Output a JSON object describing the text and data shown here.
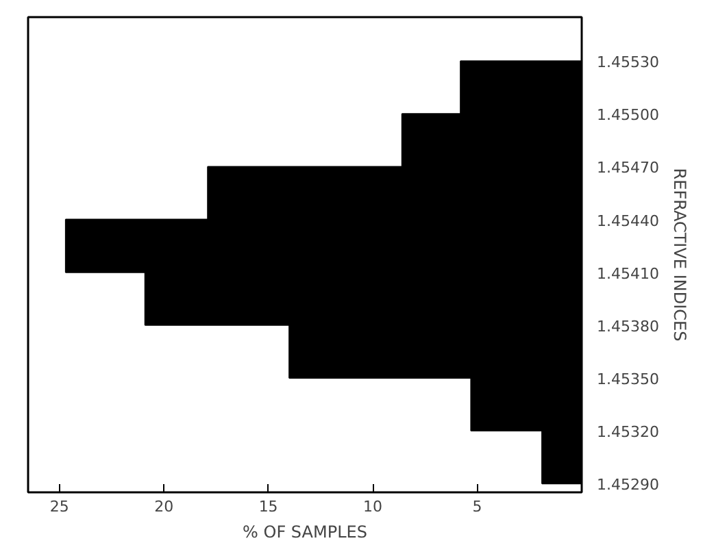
{
  "chart_data": {
    "type": "histogram",
    "orientation": "horizontal",
    "xlabel": "% OF SAMPLES",
    "ylabel": "REFRACTIVE INDICES",
    "bins": [
      1.4529,
      1.4532,
      1.4535,
      1.4538,
      1.4541,
      1.4544,
      1.4547,
      1.455,
      1.4553
    ],
    "values": [
      1.9,
      5.3,
      14.0,
      20.9,
      24.7,
      17.9,
      8.6,
      5.8
    ],
    "color": "#000000",
    "xlim": [
      26.5,
      0
    ],
    "xticks": [
      25,
      20,
      15,
      10,
      5
    ],
    "ylim": [
      1.45285,
      1.45555
    ],
    "yticks": [
      {
        "value": 1.4529,
        "label": "1.45290"
      },
      {
        "value": 1.4532,
        "label": "1.45320"
      },
      {
        "value": 1.4535,
        "label": "1.45350"
      },
      {
        "value": 1.4538,
        "label": "1.45380"
      },
      {
        "value": 1.4541,
        "label": "1.45410"
      },
      {
        "value": 1.4544,
        "label": "1.45440"
      },
      {
        "value": 1.4547,
        "label": "1.45470"
      },
      {
        "value": 1.455,
        "label": "1.45500"
      },
      {
        "value": 1.4553,
        "label": "1.45530"
      }
    ],
    "grid": false
  }
}
